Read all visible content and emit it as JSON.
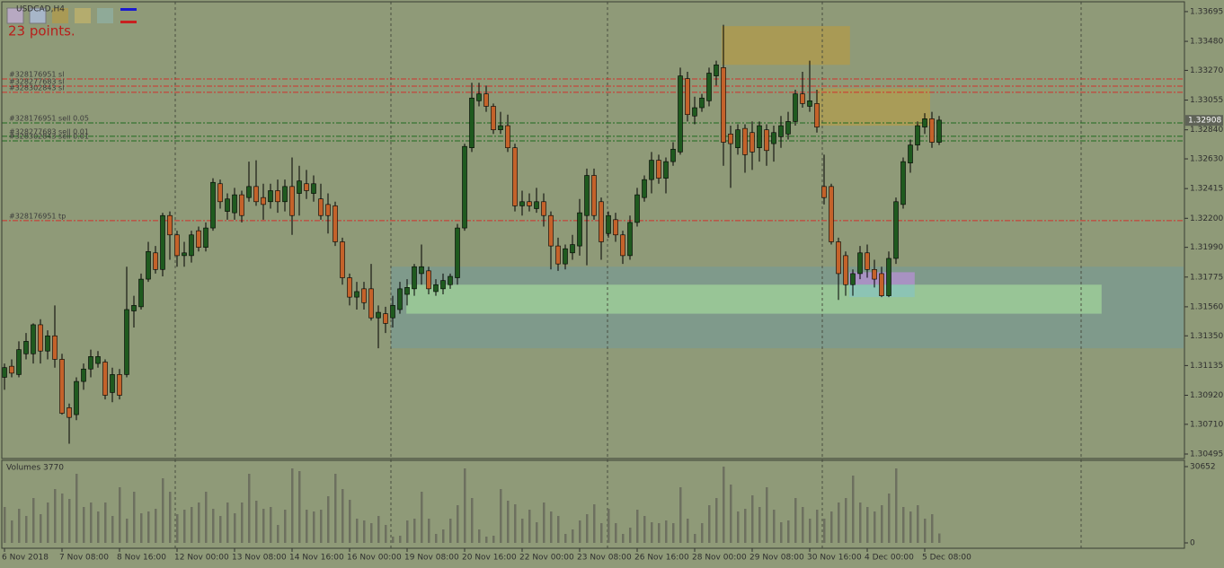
{
  "chart_data": {
    "type": "candlestick",
    "symbol": "USDCAD,H4",
    "annotation": "23 points.",
    "background": "#8f9a78",
    "colors": {
      "up": "#1f5a1f",
      "down": "#c4622a",
      "wick": "#000000"
    },
    "categories": [
      "6 Nov 2018",
      null,
      null,
      null,
      null,
      null,
      null,
      null,
      "7 Nov 08:00",
      null,
      null,
      null,
      null,
      null,
      null,
      null,
      "8 Nov 16:00",
      null,
      null,
      null,
      null,
      null,
      null,
      null,
      "12 Nov 00:00",
      null,
      null,
      null,
      null,
      null,
      null,
      null,
      "13 Nov 08:00",
      null,
      null,
      null,
      null,
      null,
      null,
      null,
      "14 Nov 16:00",
      null,
      null,
      null,
      null,
      null,
      null,
      null,
      "16 Nov 00:00",
      null,
      null,
      null,
      null,
      null,
      null,
      null,
      "19 Nov 08:00",
      null,
      null,
      null,
      null,
      null,
      null,
      null,
      "20 Nov 16:00",
      null,
      null,
      null,
      null,
      null,
      null,
      null,
      "22 Nov 00:00",
      null,
      null,
      null,
      null,
      null,
      null,
      null,
      "23 Nov 08:00",
      null,
      null,
      null,
      null,
      null,
      null,
      null,
      "26 Nov 16:00",
      null,
      null,
      null,
      null,
      null,
      null,
      null,
      "28 Nov 00:00",
      null,
      null,
      null,
      null,
      null,
      null,
      null,
      "29 Nov 08:00",
      null,
      null,
      null,
      null,
      null,
      null,
      null,
      "30 Nov 16:00",
      null,
      null,
      null,
      null,
      null,
      null,
      null,
      "4 Dec 00:00",
      null,
      null,
      null,
      null,
      null,
      null,
      null,
      "5 Dec 08:00",
      null,
      null
    ],
    "candles": [
      [
        1.3105,
        1.3115,
        1.3096,
        1.3112
      ],
      [
        1.3113,
        1.3118,
        1.3105,
        1.3108
      ],
      [
        1.3107,
        1.3131,
        1.3105,
        1.3125
      ],
      [
        1.3122,
        1.3137,
        1.3118,
        1.3131
      ],
      [
        1.3122,
        1.3144,
        1.3115,
        1.3143
      ],
      [
        1.3143,
        1.3147,
        1.3115,
        1.3124
      ],
      [
        1.3124,
        1.3139,
        1.3118,
        1.3135
      ],
      [
        1.3135,
        1.3157,
        1.3112,
        1.3118
      ],
      [
        1.3118,
        1.3122,
        1.3078,
        1.3079
      ],
      [
        1.3083,
        1.3086,
        1.3057,
        1.3076
      ],
      [
        1.3078,
        1.3105,
        1.3074,
        1.3102
      ],
      [
        1.3102,
        1.3115,
        1.3096,
        1.3111
      ],
      [
        1.3111,
        1.3125,
        1.3105,
        1.312
      ],
      [
        1.3115,
        1.3124,
        1.3112,
        1.312
      ],
      [
        1.3116,
        1.3118,
        1.3089,
        1.3092
      ],
      [
        1.3094,
        1.3112,
        1.3087,
        1.3107
      ],
      [
        1.3107,
        1.3111,
        1.3089,
        1.3092
      ],
      [
        1.3107,
        1.3185,
        1.3105,
        1.3154
      ],
      [
        1.3153,
        1.3164,
        1.3141,
        1.3157
      ],
      [
        1.3156,
        1.318,
        1.3154,
        1.3176
      ],
      [
        1.3176,
        1.3203,
        1.3174,
        1.3196
      ],
      [
        1.3195,
        1.32,
        1.318,
        1.3183
      ],
      [
        1.3183,
        1.3224,
        1.3178,
        1.3222
      ],
      [
        1.3222,
        1.3225,
        1.319,
        1.3208
      ],
      [
        1.3208,
        1.3211,
        1.3185,
        1.3193
      ],
      [
        1.3193,
        1.3203,
        1.3185,
        1.3195
      ],
      [
        1.3193,
        1.3211,
        1.3188,
        1.3208
      ],
      [
        1.3211,
        1.3214,
        1.3196,
        1.3199
      ],
      [
        1.3199,
        1.3217,
        1.3196,
        1.3213
      ],
      [
        1.3213,
        1.3249,
        1.3211,
        1.3246
      ],
      [
        1.3245,
        1.3248,
        1.3227,
        1.3232
      ],
      [
        1.3225,
        1.3238,
        1.3219,
        1.3234
      ],
      [
        1.3224,
        1.3242,
        1.3219,
        1.3237
      ],
      [
        1.3237,
        1.324,
        1.3217,
        1.3222
      ],
      [
        1.3235,
        1.3261,
        1.3232,
        1.3243
      ],
      [
        1.3243,
        1.3262,
        1.3229,
        1.3232
      ],
      [
        1.3235,
        1.3245,
        1.3219,
        1.323
      ],
      [
        1.3232,
        1.3245,
        1.3227,
        1.324
      ],
      [
        1.324,
        1.3248,
        1.3224,
        1.3232
      ],
      [
        1.3232,
        1.3248,
        1.3225,
        1.3243
      ],
      [
        1.3243,
        1.3264,
        1.3208,
        1.3222
      ],
      [
        1.3238,
        1.3258,
        1.3222,
        1.3247
      ],
      [
        1.3245,
        1.3255,
        1.3234,
        1.324
      ],
      [
        1.3238,
        1.3251,
        1.3232,
        1.3245
      ],
      [
        1.3234,
        1.3245,
        1.3219,
        1.3222
      ],
      [
        1.323,
        1.3238,
        1.3209,
        1.3222
      ],
      [
        1.3229,
        1.3232,
        1.32,
        1.3203
      ],
      [
        1.3203,
        1.3206,
        1.3172,
        1.3177
      ],
      [
        1.3177,
        1.318,
        1.3157,
        1.3163
      ],
      [
        1.3163,
        1.3174,
        1.3154,
        1.3167
      ],
      [
        1.3169,
        1.3174,
        1.3154,
        1.3159
      ],
      [
        1.3169,
        1.3187,
        1.3146,
        1.3148
      ],
      [
        1.3148,
        1.3157,
        1.3126,
        1.3152
      ],
      [
        1.3151,
        1.3156,
        1.3137,
        1.3144
      ],
      [
        1.3148,
        1.3164,
        1.3141,
        1.3157
      ],
      [
        1.3154,
        1.3174,
        1.3151,
        1.3169
      ],
      [
        1.3165,
        1.3176,
        1.3157,
        1.317
      ],
      [
        1.3169,
        1.3187,
        1.3164,
        1.3185
      ],
      [
        1.318,
        1.3201,
        1.3172,
        1.3185
      ],
      [
        1.3182,
        1.3185,
        1.3165,
        1.3169
      ],
      [
        1.3167,
        1.3176,
        1.3164,
        1.3172
      ],
      [
        1.3169,
        1.318,
        1.3165,
        1.3175
      ],
      [
        1.3172,
        1.318,
        1.3169,
        1.3178
      ],
      [
        1.3177,
        1.3216,
        1.3172,
        1.3213
      ],
      [
        1.3213,
        1.3274,
        1.3211,
        1.3272
      ],
      [
        1.3271,
        1.3318,
        1.3268,
        1.3307
      ],
      [
        1.3305,
        1.3318,
        1.3301,
        1.331
      ],
      [
        1.331,
        1.3316,
        1.3297,
        1.3301
      ],
      [
        1.3301,
        1.3303,
        1.3281,
        1.3284
      ],
      [
        1.3284,
        1.3297,
        1.3281,
        1.3287
      ],
      [
        1.3287,
        1.3295,
        1.3268,
        1.3271
      ],
      [
        1.3271,
        1.3274,
        1.3225,
        1.3229
      ],
      [
        1.3229,
        1.324,
        1.3222,
        1.3232
      ],
      [
        1.3232,
        1.3238,
        1.3225,
        1.3229
      ],
      [
        1.3227,
        1.3242,
        1.3224,
        1.3232
      ],
      [
        1.3232,
        1.3238,
        1.3214,
        1.3222
      ],
      [
        1.3222,
        1.3225,
        1.3183,
        1.32
      ],
      [
        1.32,
        1.3206,
        1.3182,
        1.3187
      ],
      [
        1.3187,
        1.3201,
        1.3183,
        1.3198
      ],
      [
        1.3195,
        1.3208,
        1.319,
        1.3201
      ],
      [
        1.32,
        1.3234,
        1.3193,
        1.3224
      ],
      [
        1.3222,
        1.3256,
        1.3186,
        1.3251
      ],
      [
        1.3251,
        1.3256,
        1.3219,
        1.3222
      ],
      [
        1.3232,
        1.3235,
        1.319,
        1.3203
      ],
      [
        1.3209,
        1.3225,
        1.3206,
        1.3222
      ],
      [
        1.3219,
        1.3224,
        1.3203,
        1.3208
      ],
      [
        1.3208,
        1.3211,
        1.3187,
        1.3193
      ],
      [
        1.3193,
        1.3222,
        1.319,
        1.3217
      ],
      [
        1.3217,
        1.3242,
        1.3214,
        1.3237
      ],
      [
        1.3235,
        1.3251,
        1.3232,
        1.3248
      ],
      [
        1.3248,
        1.3268,
        1.3238,
        1.3262
      ],
      [
        1.3262,
        1.3266,
        1.3245,
        1.3249
      ],
      [
        1.3249,
        1.3264,
        1.3238,
        1.3261
      ],
      [
        1.3261,
        1.3275,
        1.3258,
        1.327
      ],
      [
        1.3268,
        1.3329,
        1.3266,
        1.3323
      ],
      [
        1.3321,
        1.3326,
        1.329,
        1.3295
      ],
      [
        1.3294,
        1.3308,
        1.3288,
        1.33
      ],
      [
        1.33,
        1.331,
        1.3297,
        1.3307
      ],
      [
        1.3305,
        1.3329,
        1.3301,
        1.3325
      ],
      [
        1.3323,
        1.3334,
        1.3316,
        1.3331
      ],
      [
        1.3329,
        1.336,
        1.3258,
        1.3275
      ],
      [
        1.3281,
        1.3287,
        1.3242,
        1.3274
      ],
      [
        1.3271,
        1.3288,
        1.3266,
        1.3284
      ],
      [
        1.3285,
        1.3288,
        1.3253,
        1.3266
      ],
      [
        1.3282,
        1.329,
        1.3255,
        1.3268
      ],
      [
        1.3271,
        1.329,
        1.3261,
        1.3287
      ],
      [
        1.3284,
        1.3288,
        1.3258,
        1.3269
      ],
      [
        1.3274,
        1.3287,
        1.3261,
        1.3282
      ],
      [
        1.3279,
        1.3294,
        1.3271,
        1.3287
      ],
      [
        1.3281,
        1.3297,
        1.3277,
        1.329
      ],
      [
        1.329,
        1.3313,
        1.3287,
        1.331
      ],
      [
        1.331,
        1.3326,
        1.33,
        1.3303
      ],
      [
        1.3301,
        1.3334,
        1.3297,
        1.3305
      ],
      [
        1.3303,
        1.3313,
        1.3282,
        1.3286
      ],
      [
        1.3243,
        1.3266,
        1.323,
        1.3235
      ],
      [
        1.3243,
        1.3245,
        1.3201,
        1.3203
      ],
      [
        1.3203,
        1.3206,
        1.3161,
        1.318
      ],
      [
        1.3193,
        1.3196,
        1.3164,
        1.3172
      ],
      [
        1.3172,
        1.3183,
        1.3164,
        1.318
      ],
      [
        1.318,
        1.32,
        1.3176,
        1.3195
      ],
      [
        1.3195,
        1.3201,
        1.3177,
        1.3183
      ],
      [
        1.3183,
        1.319,
        1.317,
        1.3176
      ],
      [
        1.318,
        1.3185,
        1.3163,
        1.3164
      ],
      [
        1.3164,
        1.3196,
        1.3163,
        1.3191
      ],
      [
        1.3191,
        1.3235,
        1.3187,
        1.3232
      ],
      [
        1.323,
        1.3264,
        1.3227,
        1.3261
      ],
      [
        1.326,
        1.3277,
        1.3253,
        1.3273
      ],
      [
        1.3273,
        1.329,
        1.3269,
        1.3287
      ],
      [
        1.3286,
        1.3296,
        1.3281,
        1.3292
      ],
      [
        1.3292,
        1.3297,
        1.3271,
        1.3275
      ],
      [
        1.3275,
        1.3294,
        1.3273,
        1.3291
      ]
    ],
    "ylim": [
      1.30469,
      1.33753
    ],
    "yticks": [
      1.33695,
      {
        "value": 1.3348,
        "label": "1.33480"
      },
      {
        "value": 1.3327,
        "label": "1.33270"
      },
      1.33055,
      {
        "value": 1.3284,
        "label": "1.32840"
      },
      {
        "value": 1.3263,
        "label": "1.32630"
      },
      1.32415,
      {
        "value": 1.322,
        "label": "1.32200"
      },
      {
        "value": 1.3199,
        "label": "1.31990"
      },
      1.31775,
      {
        "value": 1.3156,
        "label": "1.31560"
      },
      {
        "value": 1.3135,
        "label": "1.31350"
      },
      1.31135,
      {
        "value": 1.3092,
        "label": "1.30920"
      },
      {
        "value": 1.3071,
        "label": "1.30710"
      },
      1.30495
    ],
    "current_price": 1.32908,
    "orders": [
      {
        "label": "#328176951 sl",
        "price": 1.33208,
        "color": "#d1322c"
      },
      {
        "label": "#328277683 sl",
        "price": 1.33156,
        "color": "#d1322c"
      },
      {
        "label": "#328302843 sl",
        "price": 1.33111,
        "color": "#d1322c"
      },
      {
        "label": "#328176951 sell 0.05",
        "price": 1.3289,
        "color": "#1f6a1f"
      },
      {
        "label": "#328277683 sell 0.01",
        "price": 1.32793,
        "color": "#1f6a1f"
      },
      {
        "label": "#328302843 sell 0.01",
        "price": 1.3276,
        "color": "#1f6a1f"
      },
      {
        "label": "#328176951 tp",
        "price": 1.32183,
        "color": "#d1322c"
      }
    ],
    "zones": [
      {
        "x": [
          53.75,
          164
        ],
        "y": [
          1.3126,
          1.3185
        ],
        "color": "#7f9a8b"
      },
      {
        "x": [
          55.9,
          152.6
        ],
        "y": [
          1.3151,
          1.3172
        ],
        "color": "#98c596"
      },
      {
        "x": [
          99.75,
          117.6
        ],
        "y": [
          1.3331,
          1.3359
        ],
        "color": "#a99a55"
      },
      {
        "x": [
          112.9,
          128.75
        ],
        "y": [
          1.3287,
          1.3314
        ],
        "color": "#a99c58"
      },
      {
        "x": [
          117.5,
          126.6
        ],
        "y": [
          1.3172,
          1.3181
        ],
        "color": "#a892c2"
      },
      {
        "x": [
          117.5,
          126.6
        ],
        "y": [
          1.3163,
          1.3172
        ],
        "color": "#8cc4b4"
      }
    ],
    "volumes": {
      "label": "Volumes 3770",
      "color": "#6d705f",
      "ylim": [
        0,
        30652
      ],
      "yticks": [
        30652,
        0
      ],
      "values": [
        14420,
        9015,
        13703,
        10818,
        18030,
        11539,
        16227,
        21636,
        19833,
        17669,
        27766,
        14424,
        16227,
        12621,
        16227,
        10818,
        22357,
        9736,
        20554,
        11900,
        12621,
        13703,
        25963,
        20554,
        11539,
        13342,
        14424,
        16227,
        20554,
        13703,
        10818,
        16227,
        11900,
        16227,
        27766,
        16948,
        13703,
        14424,
        7212,
        13342,
        29930,
        28848,
        13342,
        12621,
        13342,
        18751,
        27766,
        21636,
        17309,
        9736,
        9015,
        7933,
        10818,
        7212,
        2524,
        2885,
        9015,
        9736,
        20554,
        9736,
        3606,
        5409,
        9736,
        15145,
        29930,
        18030,
        5409,
        2524,
        2885,
        21636,
        16948,
        15506,
        9736,
        13342,
        8294,
        16227,
        12621,
        10818,
        3606,
        5409,
        9015,
        11539,
        15506,
        7933,
        13703,
        7933,
        3606,
        6130,
        13342,
        10818,
        8294,
        7933,
        9015,
        7933,
        22357,
        9736,
        3606,
        7933,
        15145,
        18030,
        30652,
        23439,
        12621,
        13703,
        19112,
        14424,
        22357,
        13342,
        8294,
        9015,
        18030,
        14424,
        9736,
        13342,
        9736,
        12621,
        16227,
        18030,
        27045,
        16227,
        14424,
        12621,
        15145,
        19833,
        29930,
        14424,
        12621,
        15145,
        9736,
        11539,
        3770
      ]
    }
  }
}
